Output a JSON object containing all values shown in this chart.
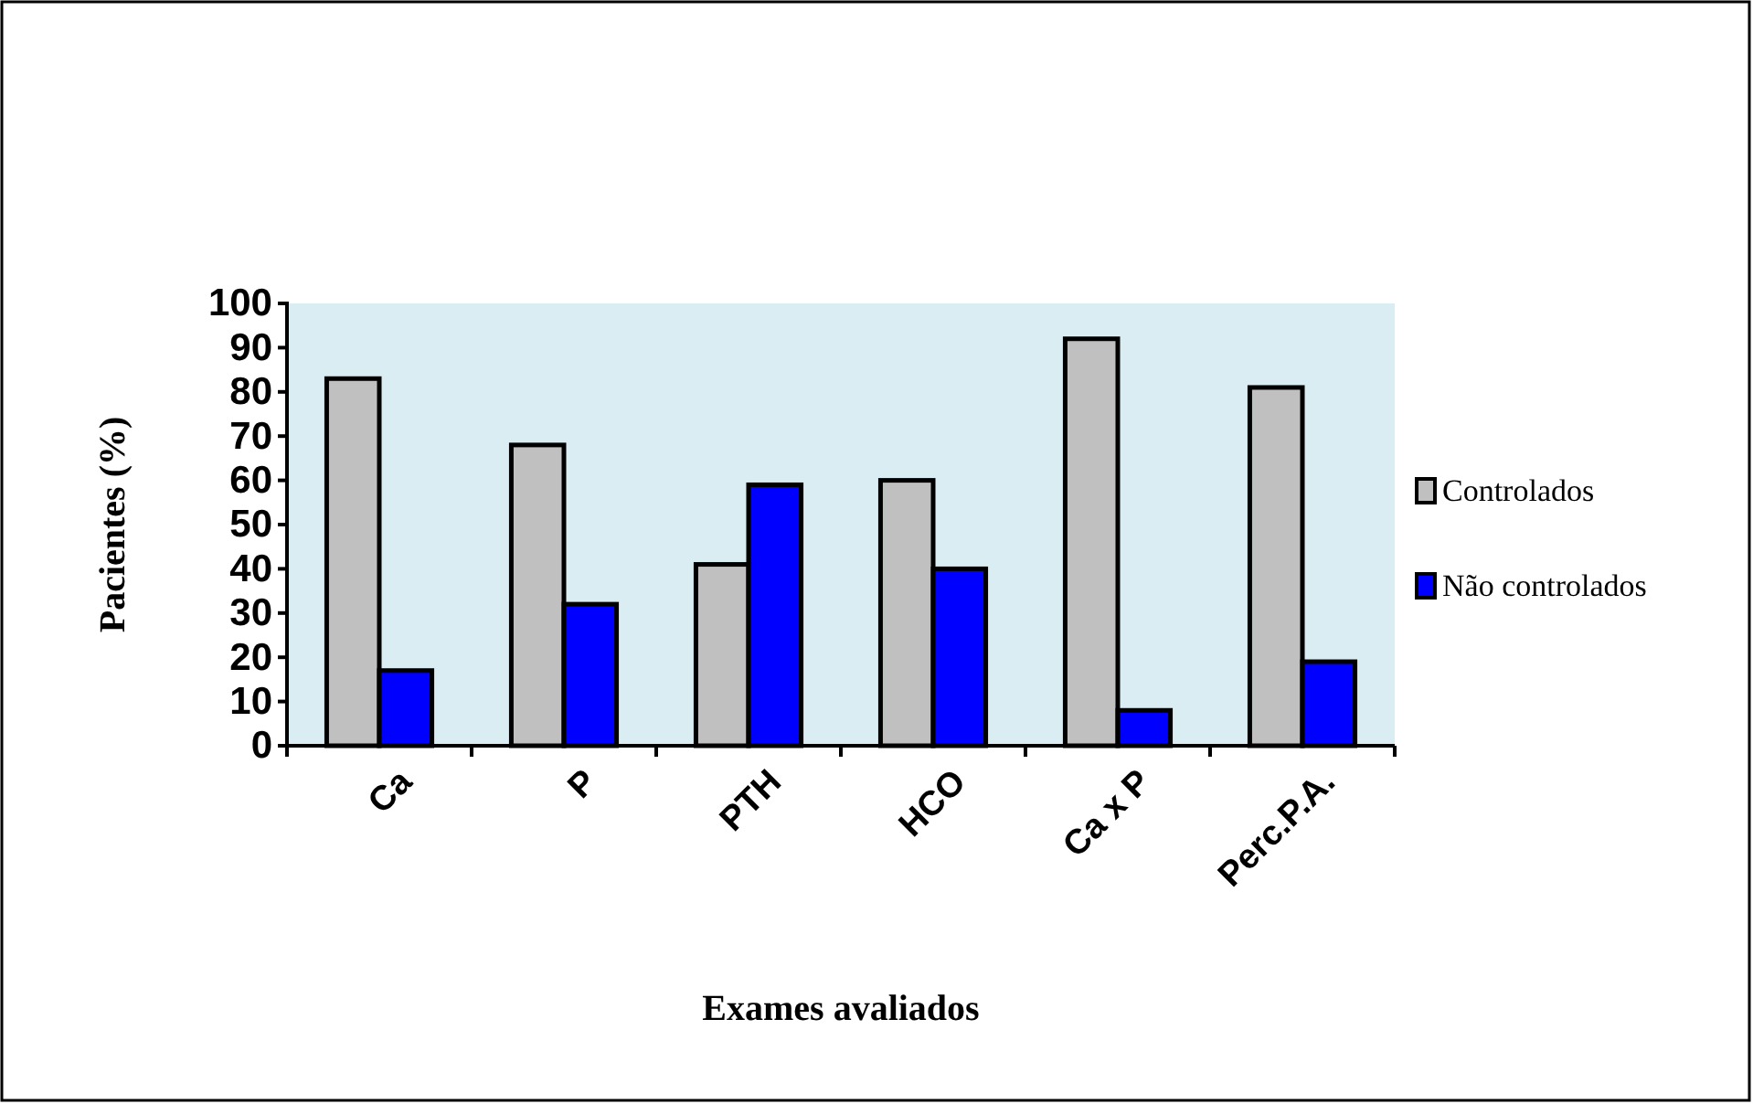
{
  "chart_data": {
    "type": "bar",
    "xlabel": "Exames avaliados",
    "ylabel": "Pacientes (%)",
    "categories": [
      "Ca",
      "P",
      "PTH",
      "HCO",
      "Ca x P",
      "Perc.P.A."
    ],
    "series": [
      {
        "name": "Controlados",
        "color": "#c0c0c0",
        "values": [
          83,
          68,
          41,
          60,
          92,
          81
        ]
      },
      {
        "name": "Não controlados",
        "color": "#0000ff",
        "values": [
          17,
          32,
          59,
          40,
          8,
          19
        ]
      }
    ],
    "ylim": [
      0,
      100
    ],
    "yticks": [
      0,
      10,
      20,
      30,
      40,
      50,
      60,
      70,
      80,
      90,
      100
    ],
    "grid": false,
    "legend": "right"
  }
}
